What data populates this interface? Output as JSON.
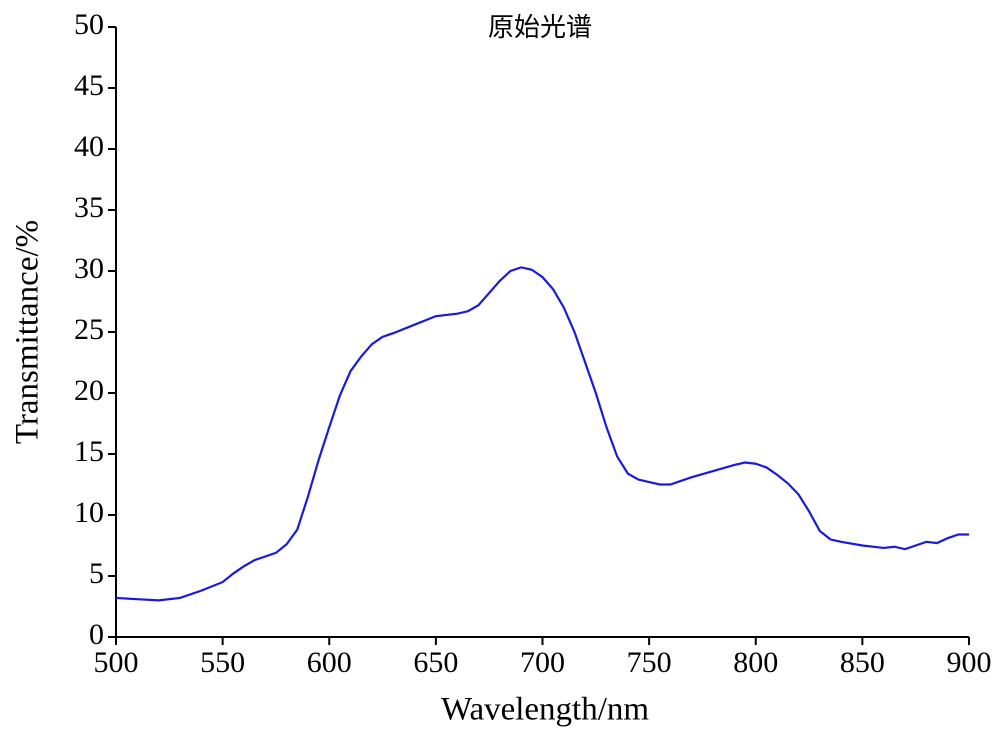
{
  "chart_data": {
    "type": "line",
    "title": "原始光谱",
    "xlabel": "Wavelength/nm",
    "ylabel": "Transmittance/%",
    "x": [
      500,
      510,
      520,
      530,
      540,
      550,
      555,
      560,
      565,
      570,
      575,
      580,
      585,
      590,
      595,
      600,
      605,
      610,
      615,
      620,
      625,
      630,
      640,
      650,
      660,
      665,
      670,
      675,
      680,
      685,
      690,
      695,
      700,
      705,
      710,
      715,
      720,
      725,
      730,
      735,
      740,
      745,
      750,
      755,
      760,
      765,
      770,
      780,
      790,
      795,
      800,
      805,
      810,
      815,
      820,
      825,
      830,
      835,
      840,
      850,
      860,
      865,
      870,
      875,
      880,
      885,
      890,
      895,
      900
    ],
    "series": [
      {
        "name": "原始光谱",
        "color": "#1a1adc",
        "values": [
          3.2,
          3.1,
          3.0,
          3.2,
          3.8,
          4.5,
          5.2,
          5.8,
          6.3,
          6.6,
          6.9,
          7.6,
          8.8,
          11.5,
          14.5,
          17.2,
          19.8,
          21.8,
          23.0,
          24.0,
          24.6,
          24.9,
          25.6,
          26.3,
          26.5,
          26.7,
          27.2,
          28.2,
          29.2,
          30.0,
          30.3,
          30.1,
          29.5,
          28.5,
          27.0,
          25.0,
          22.5,
          20.0,
          17.2,
          14.8,
          13.4,
          12.9,
          12.7,
          12.5,
          12.5,
          12.8,
          13.1,
          13.6,
          14.1,
          14.3,
          14.2,
          13.9,
          13.3,
          12.6,
          11.7,
          10.3,
          8.7,
          8.0,
          7.8,
          7.5,
          7.3,
          7.4,
          7.2,
          7.5,
          7.8,
          7.7,
          8.1,
          8.4,
          8.4
        ]
      }
    ],
    "xlim": [
      500,
      900
    ],
    "xticks": [
      500,
      550,
      600,
      650,
      700,
      750,
      800,
      850,
      900
    ],
    "ylim": [
      0,
      50
    ],
    "yticks": [
      0,
      5,
      10,
      15,
      20,
      25,
      30,
      35,
      40,
      45,
      50
    ],
    "grid": false
  }
}
